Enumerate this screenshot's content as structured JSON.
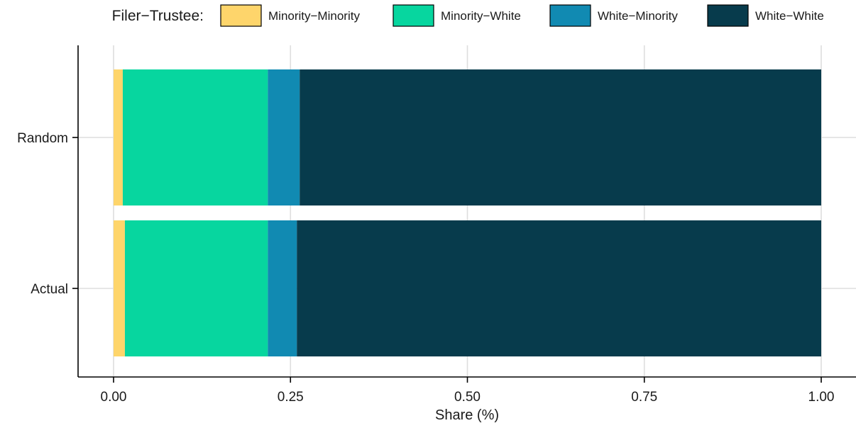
{
  "chart_data": {
    "type": "bar",
    "orientation": "horizontal",
    "stacked": true,
    "categories": [
      "Actual",
      "Random"
    ],
    "series": [
      {
        "name": "Minority−Minority",
        "color": "#fed56b",
        "values": [
          0.016,
          0.013
        ]
      },
      {
        "name": "Minority−White",
        "color": "#07d69f",
        "values": [
          0.202,
          0.205
        ]
      },
      {
        "name": "White−Minority",
        "color": "#118ab2",
        "values": [
          0.041,
          0.045
        ]
      },
      {
        "name": "White−White",
        "color": "#073b4c",
        "values": [
          0.741,
          0.737
        ]
      }
    ],
    "xlabel": "Share (%)",
    "ylabel": "",
    "xlim": [
      0,
      1
    ],
    "xticks": [
      "0.00",
      "0.25",
      "0.50",
      "0.75",
      "1.00"
    ],
    "grid": true,
    "legend": {
      "title": "Filer−Trustee:",
      "position": "top"
    }
  }
}
